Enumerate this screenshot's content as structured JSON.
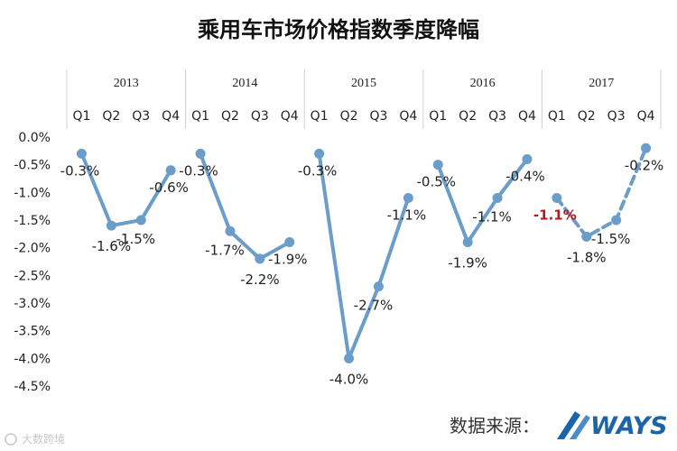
{
  "chart_data": {
    "type": "line",
    "title": "乘用车市场价格指数季度降幅",
    "years": [
      "2013",
      "2014",
      "2015",
      "2016",
      "2017"
    ],
    "quarters": [
      "Q1",
      "Q2",
      "Q3",
      "Q4"
    ],
    "y_ticks": [
      "0.0%",
      "-0.5%",
      "-1.0%",
      "-1.5%",
      "-2.0%",
      "-2.5%",
      "-3.0%",
      "-3.5%",
      "-4.0%",
      "-4.5%"
    ],
    "ylim": [
      -4.5,
      0.0
    ],
    "series": [
      {
        "year": "2013",
        "values": [
          -0.3,
          -1.6,
          -1.5,
          -0.6
        ],
        "labels": [
          "-0.3%",
          "-1.6%",
          "-1.5%",
          "-0.6%"
        ],
        "style": "solid"
      },
      {
        "year": "2014",
        "values": [
          -0.3,
          -1.7,
          -2.2,
          -1.9
        ],
        "labels": [
          "-0.3%",
          "-1.7%",
          "-2.2%",
          "-1.9%"
        ],
        "style": "solid"
      },
      {
        "year": "2015",
        "values": [
          -0.3,
          -4.0,
          -2.7,
          -1.1
        ],
        "labels": [
          "-0.3%",
          "-4.0%",
          "-2.7%",
          "-1.1%"
        ],
        "style": "solid"
      },
      {
        "year": "2016",
        "values": [
          -0.5,
          -1.9,
          -1.1,
          -0.4
        ],
        "labels": [
          "-0.5%",
          "-1.9%",
          "-1.1%",
          "-0.4%"
        ],
        "style": "solid"
      },
      {
        "year": "2017",
        "values": [
          -1.1,
          -1.8,
          -1.5,
          -0.2
        ],
        "labels": [
          "-1.1%",
          "-1.8%",
          "-1.5%",
          "-0.2%"
        ],
        "style": "dashed",
        "highlight_index": 0
      }
    ],
    "grid": false,
    "colors": {
      "line": "#6b9dca",
      "highlight_label": "#c0141c",
      "brand": "#1b64a8"
    }
  },
  "source": {
    "label": "数据来源：",
    "brand": "WAYS"
  },
  "watermark": {
    "text": "大数跨境"
  }
}
